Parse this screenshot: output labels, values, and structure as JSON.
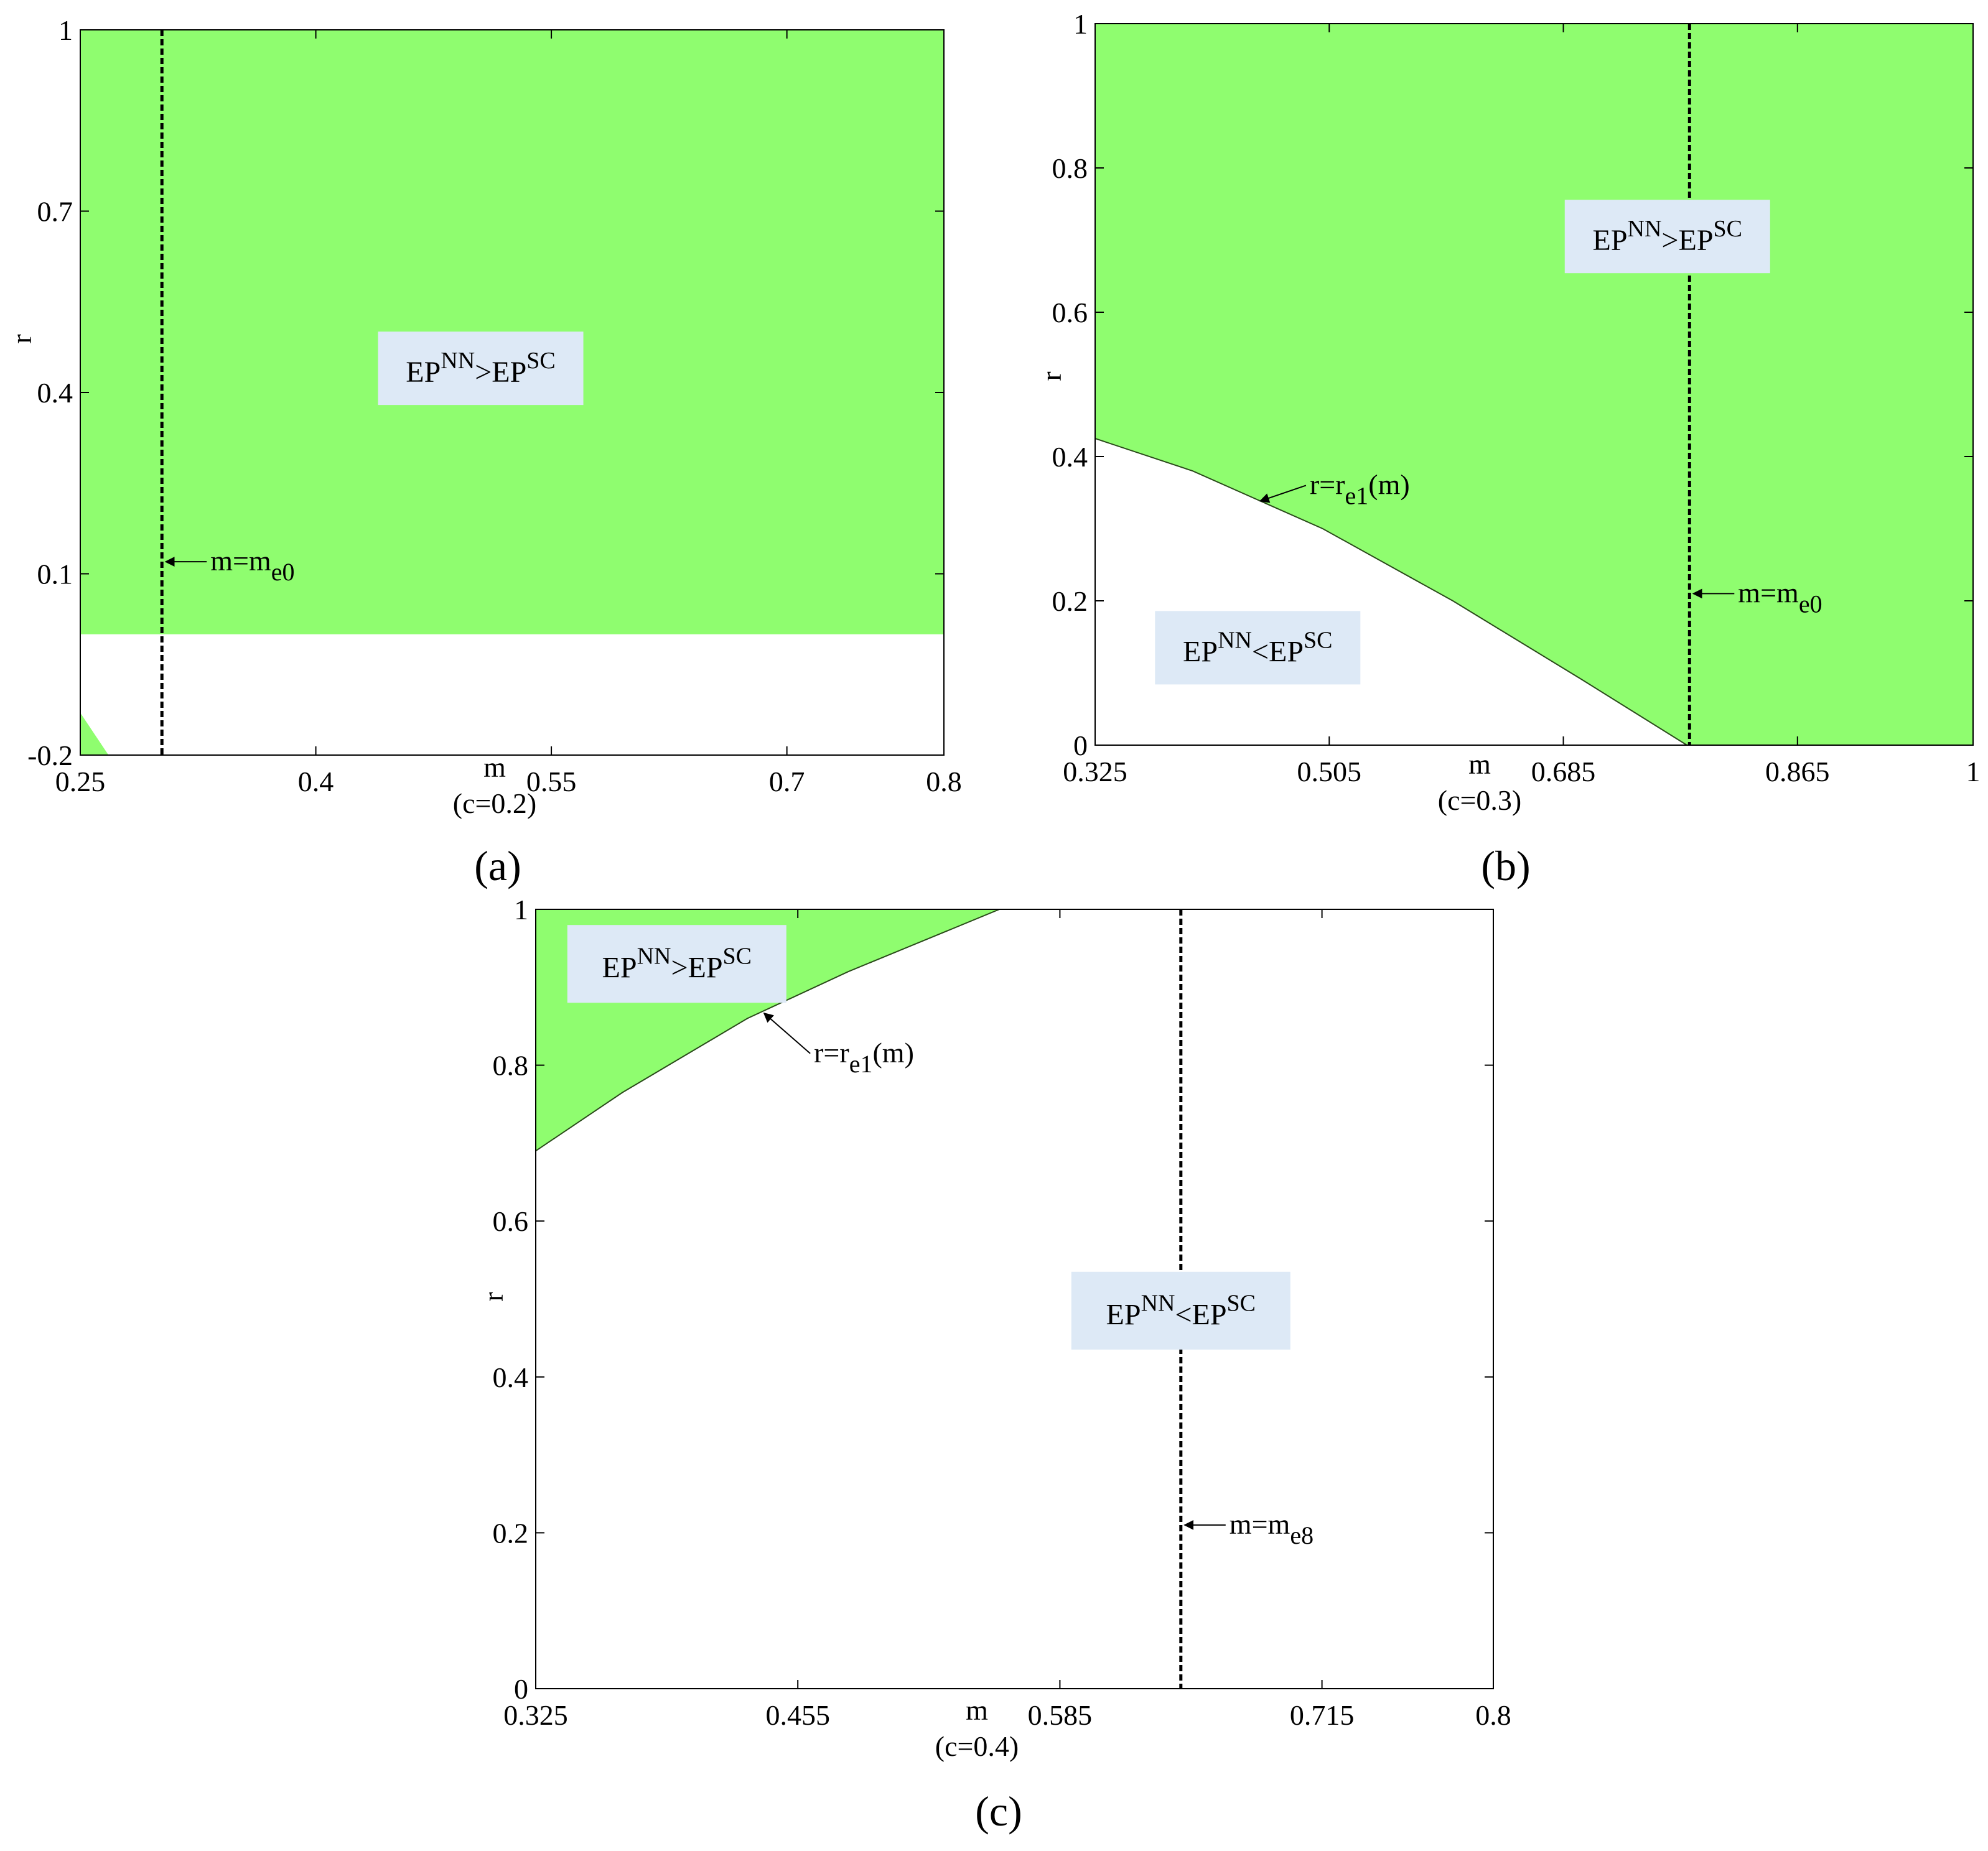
{
  "colors": {
    "green": "#8ffd6f",
    "label_box": "#dde9f6",
    "axis": "#000000",
    "background": "#ffffff"
  },
  "chart_data": [
    {
      "type": "area",
      "panel": "(a)",
      "xlabel": "m",
      "xsublabel": "(c=0.2)",
      "ylabel": "r",
      "xlim": [
        0.25,
        0.8
      ],
      "ylim": [
        -0.2,
        1
      ],
      "xticks": [
        "0.25",
        "0.4",
        "0.55",
        "0.7",
        "0.8"
      ],
      "xtick_values": [
        0.25,
        0.4,
        0.55,
        0.7,
        0.8
      ],
      "yticks": [
        "-0.2",
        "0.1",
        "0.4",
        "0.7",
        "1"
      ],
      "ytick_values": [
        -0.2,
        0.1,
        0.4,
        0.7,
        1
      ],
      "grid": false,
      "regions": [
        {
          "fill": "green",
          "points": [
            [
              0.25,
              0.0
            ],
            [
              0.8,
              0.0
            ],
            [
              0.8,
              1
            ],
            [
              0.25,
              1
            ]
          ]
        },
        {
          "fill": "green",
          "points": [
            [
              0.25,
              -0.13
            ],
            [
              0.268,
              -0.2
            ],
            [
              0.25,
              -0.2
            ]
          ]
        }
      ],
      "vlines": [
        {
          "x": 0.302,
          "label_main": "m=m",
          "label_sub": "e0",
          "label_y": 0.12
        }
      ],
      "annotations": [
        {
          "x": 0.505,
          "y": 0.44,
          "main1": "EP",
          "sup1": "NN",
          "op": ">",
          "main2": "EP",
          "sup2": "SC"
        }
      ]
    },
    {
      "type": "area",
      "panel": "(b)",
      "xlabel": "m",
      "xsublabel": "(c=0.3)",
      "ylabel": "r",
      "xlim": [
        0.325,
        1
      ],
      "ylim": [
        0,
        1
      ],
      "xticks": [
        "0.325",
        "0.505",
        "0.685",
        "0.865",
        "1"
      ],
      "xtick_values": [
        0.325,
        0.505,
        0.685,
        0.865,
        1
      ],
      "yticks": [
        "0",
        "0.2",
        "0.4",
        "0.6",
        "0.8",
        "1"
      ],
      "ytick_values": [
        0,
        0.2,
        0.4,
        0.6,
        0.8,
        1
      ],
      "grid": false,
      "regions": [
        {
          "fill": "green",
          "points": [
            [
              0.325,
              0.425
            ],
            [
              0.4,
              0.38
            ],
            [
              0.5,
              0.3
            ],
            [
              0.6,
              0.2
            ],
            [
              0.7,
              0.09
            ],
            [
              0.78,
              0.0
            ],
            [
              1,
              0
            ],
            [
              1,
              1
            ],
            [
              0.325,
              1
            ]
          ]
        }
      ],
      "curves": [
        {
          "points": [
            [
              0.325,
              0.425
            ],
            [
              0.4,
              0.38
            ],
            [
              0.5,
              0.3
            ],
            [
              0.6,
              0.2
            ],
            [
              0.7,
              0.09
            ],
            [
              0.78,
              0.0
            ]
          ],
          "label_main": "r=r",
          "label_sub": "e1",
          "label_tail": "(m)",
          "arrow_x": 0.45,
          "label_x": 0.49,
          "label_y": 0.36
        }
      ],
      "vlines": [
        {
          "x": 0.782,
          "label_main": "m=m",
          "label_sub": "e0",
          "label_y": 0.21
        }
      ],
      "annotations": [
        {
          "x": 0.765,
          "y": 0.705,
          "main1": "EP",
          "sup1": "NN",
          "op": ">",
          "main2": "EP",
          "sup2": "SC"
        },
        {
          "x": 0.45,
          "y": 0.135,
          "main1": "EP",
          "sup1": "NN",
          "op": "<",
          "main2": "EP",
          "sup2": "SC"
        }
      ]
    },
    {
      "type": "area",
      "panel": "(c)",
      "xlabel": "m",
      "xsublabel": "(c=0.4)",
      "ylabel": "r",
      "xlim": [
        0.325,
        0.8
      ],
      "ylim": [
        0,
        1
      ],
      "xticks": [
        "0.325",
        "0.455",
        "0.585",
        "0.715",
        "0.8"
      ],
      "xtick_values": [
        0.325,
        0.455,
        0.585,
        0.715,
        0.8
      ],
      "yticks": [
        "0",
        "0.2",
        "0.4",
        "0.6",
        "0.8",
        "1"
      ],
      "ytick_values": [
        0,
        0.2,
        0.4,
        0.6,
        0.8,
        1
      ],
      "grid": false,
      "regions": [
        {
          "fill": "green",
          "points": [
            [
              0.325,
              0.69
            ],
            [
              0.368,
              0.765
            ],
            [
              0.43,
              0.86
            ],
            [
              0.48,
              0.92
            ],
            [
              0.555,
              1
            ],
            [
              0.325,
              1
            ]
          ]
        }
      ],
      "curves": [
        {
          "points": [
            [
              0.325,
              0.69
            ],
            [
              0.368,
              0.765
            ],
            [
              0.43,
              0.86
            ],
            [
              0.48,
              0.92
            ],
            [
              0.555,
              1
            ]
          ],
          "label_main": "r=r",
          "label_sub": "e1",
          "label_tail": "(m)",
          "arrow_x": 0.437,
          "label_x": 0.463,
          "label_y": 0.815
        }
      ],
      "vlines": [
        {
          "x": 0.645,
          "label_main": "m=m",
          "label_sub": "e8",
          "label_y": 0.21
        }
      ],
      "annotations": [
        {
          "x": 0.395,
          "y": 0.93,
          "main1": "EP",
          "sup1": "NN",
          "op": ">",
          "main2": "EP",
          "sup2": "SC"
        },
        {
          "x": 0.645,
          "y": 0.485,
          "main1": "EP",
          "sup1": "NN",
          "op": "<",
          "main2": "EP",
          "sup2": "SC"
        }
      ]
    }
  ]
}
